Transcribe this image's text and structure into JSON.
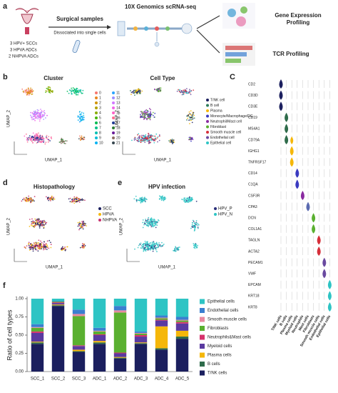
{
  "panel_a": {
    "letter": "a",
    "samples": [
      "3 HPV+ SCCs",
      "3 HPVA ADCs",
      "2 NHPVA ADCs"
    ],
    "step1_title": "Surgical samples",
    "step1_subtitle": "Dissociated into  single cells",
    "step2_title": "10X Genomics scRNA-seq",
    "outputs": [
      [
        "Gene Expression",
        "Profiling"
      ],
      [
        "TCR Profiling"
      ]
    ]
  },
  "chart_data": [
    {
      "type": "scatter",
      "panel": "b",
      "title": "Cluster",
      "x_label": "UMAP_1",
      "y_label": "UMAP_2",
      "legend": [
        {
          "name": "0",
          "color": "#f8766d"
        },
        {
          "name": "1",
          "color": "#e7851e"
        },
        {
          "name": "2",
          "color": "#d09400"
        },
        {
          "name": "3",
          "color": "#b2a100"
        },
        {
          "name": "4",
          "color": "#89ac00"
        },
        {
          "name": "5",
          "color": "#45b500"
        },
        {
          "name": "6",
          "color": "#00bc51"
        },
        {
          "name": "7",
          "color": "#00c087"
        },
        {
          "name": "8",
          "color": "#00c0b2"
        },
        {
          "name": "9",
          "color": "#00bcd6"
        },
        {
          "name": "10",
          "color": "#00b3f2"
        },
        {
          "name": "11",
          "color": "#29a3ff"
        },
        {
          "name": "12",
          "color": "#9c8dff"
        },
        {
          "name": "13",
          "color": "#d277ff"
        },
        {
          "name": "14",
          "color": "#f166e8"
        },
        {
          "name": "15",
          "color": "#ff61c7"
        },
        {
          "name": "16",
          "color": "#ff6c91"
        },
        {
          "name": "17",
          "color": "#1f3a93"
        },
        {
          "name": "18",
          "color": "#2e7d32"
        },
        {
          "name": "19",
          "color": "#6a1b9a"
        },
        {
          "name": "20",
          "color": "#8d6e63"
        },
        {
          "name": "21",
          "color": "#37474f"
        }
      ]
    },
    {
      "type": "scatter",
      "panel": "",
      "title": "Cell Type",
      "x_label": "UMAP_1",
      "y_label": "UMAP_2",
      "legend": [
        {
          "name": "T/NK cell",
          "color": "#1b1f5e"
        },
        {
          "name": "B cell",
          "color": "#2e7d5b"
        },
        {
          "name": "Plasma",
          "color": "#f5b70a"
        },
        {
          "name": "Monocyte/Macrophage/DC",
          "color": "#3a3ac0"
        },
        {
          "name": "Neutrophil/Mast cell",
          "color": "#8a2aa0"
        },
        {
          "name": "Fibroblast",
          "color": "#5ab030"
        },
        {
          "name": "Smooth muscle cell",
          "color": "#d62f3a"
        },
        {
          "name": "Endothelial cell",
          "color": "#6a4aa0"
        },
        {
          "name": "Epithelial cell",
          "color": "#2ec4c4"
        }
      ]
    },
    {
      "type": "scatter",
      "panel": "d",
      "title": "Histopathology",
      "x_label": "UMAP_1",
      "y_label": "UMAP_2",
      "legend": [
        {
          "name": "SCC",
          "color": "#1b1f5e"
        },
        {
          "name": "HPVA",
          "color": "#f5b70a"
        },
        {
          "name": "NHPVA",
          "color": "#c8326e"
        }
      ]
    },
    {
      "type": "scatter",
      "panel": "e",
      "title": "HPV infection",
      "x_label": "UMAP_1",
      "y_label": "UMAP_2",
      "legend": [
        {
          "name": "HPV_P",
          "color": "#2b2f7a"
        },
        {
          "name": "HPV_N",
          "color": "#2ec4c4"
        }
      ]
    },
    {
      "type": "violin",
      "panel": "C",
      "genes": [
        "CD2",
        "CD3D",
        "CD3E",
        "CD19",
        "MS4A1",
        "CD79A",
        "IGHG1",
        "TNFRSF17",
        "CD14",
        "C1QA",
        "CSF3R",
        "CPA3",
        "DCN",
        "COL1A1",
        "TAGLN",
        "ACTA2",
        "PECAM1",
        "VWF",
        "EPCAM",
        "KRT18",
        "KRT8"
      ],
      "categories": [
        "T/NK cells",
        "B cells",
        "Plasma cells",
        "Myeloid cells",
        "Neutrophils",
        "Mast cells",
        "Fibroblasts",
        "Smooth muscle cells",
        "Endothelial cells",
        "Epithelial cells"
      ],
      "colors": [
        "#1b1f5e",
        "#2e6b4a",
        "#f5b70a",
        "#3a3ac0",
        "#8a2aa0",
        "#5a6ab0",
        "#5ab030",
        "#d62f3a",
        "#6a4aa0",
        "#2ec4c4"
      ]
    },
    {
      "type": "bar",
      "stacked": true,
      "panel": "f",
      "y_label": "Ratio of cell types",
      "categories": [
        "SCC_1",
        "SCC_2",
        "SCC_3",
        "ADC_1",
        "ADC_2",
        "ADC_3",
        "ADC_4",
        "ADC_5"
      ],
      "ylim": [
        0,
        1
      ],
      "yticks": [
        {
          "value": 0,
          "label": "0.00"
        },
        {
          "value": 0.25,
          "label": "0.25"
        },
        {
          "value": 0.5,
          "label": "0.50"
        },
        {
          "value": 0.75,
          "label": "0.75"
        },
        {
          "value": 1,
          "label": "1.00"
        }
      ],
      "series": [
        {
          "name": "T/NK cells",
          "color": "#1b1f5e",
          "values": [
            0.38,
            0.9,
            0.27,
            0.38,
            0.18,
            0.38,
            0.3,
            0.45
          ]
        },
        {
          "name": "B cells",
          "color": "#2e6b4a",
          "values": [
            0.02,
            0.01,
            0.01,
            0.02,
            0.01,
            0.01,
            0.02,
            0.03
          ]
        },
        {
          "name": "Plasma cells",
          "color": "#f5b70a",
          "values": [
            0.01,
            0.01,
            0.02,
            0.02,
            0.01,
            0.01,
            0.3,
            0.08
          ]
        },
        {
          "name": "Myeloid cells",
          "color": "#5a3aa0",
          "values": [
            0.12,
            0.02,
            0.05,
            0.08,
            0.05,
            0.08,
            0.08,
            0.1
          ]
        },
        {
          "name": "Neutrophils&Mast cells",
          "color": "#d6336c",
          "values": [
            0.02,
            0.01,
            0.01,
            0.01,
            0.01,
            0.02,
            0.01,
            0.02
          ]
        },
        {
          "name": "Fibroblasts",
          "color": "#5ab030",
          "values": [
            0.05,
            0.01,
            0.4,
            0.04,
            0.55,
            0.02,
            0.02,
            0.02
          ]
        },
        {
          "name": "Smooth muscle cells",
          "color": "#e88aa0",
          "values": [
            0.01,
            0,
            0.03,
            0.01,
            0.03,
            0.01,
            0.01,
            0.01
          ]
        },
        {
          "name": "Endothelial cells",
          "color": "#3a7fd0",
          "values": [
            0.04,
            0.01,
            0.06,
            0.04,
            0.06,
            0.02,
            0.03,
            0.04
          ]
        },
        {
          "name": "Epithelial cells",
          "color": "#2ec4c4",
          "values": [
            0.35,
            0.03,
            0.15,
            0.4,
            0.1,
            0.45,
            0.23,
            0.25
          ]
        }
      ]
    }
  ]
}
